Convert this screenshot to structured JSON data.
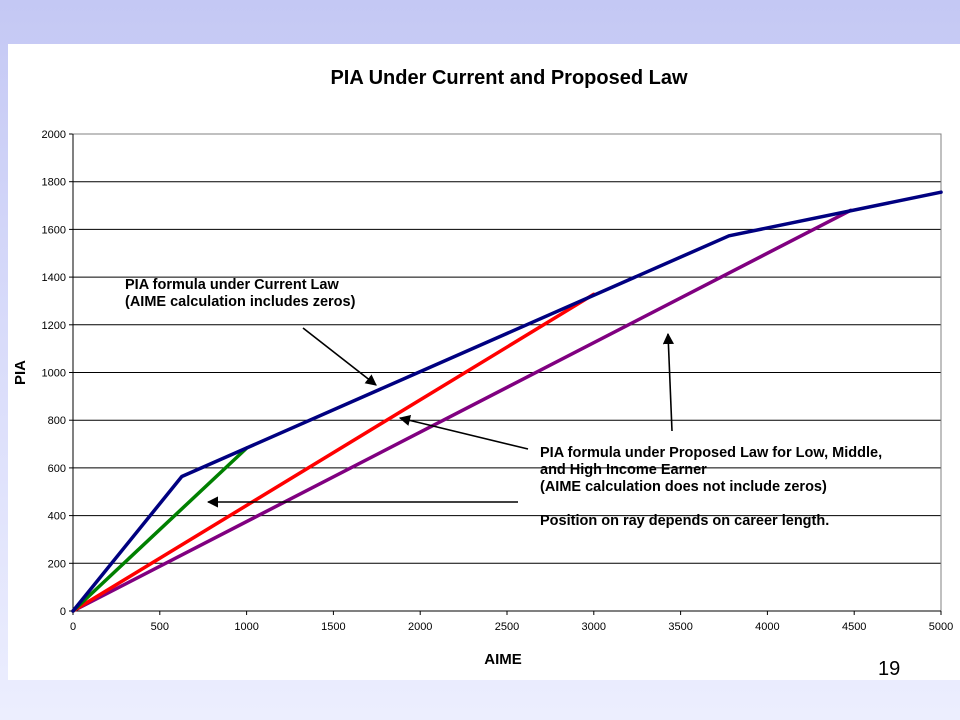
{
  "slide": {
    "page_number": "19"
  },
  "chart_data": {
    "type": "line",
    "title": "PIA Under Current and Proposed Law",
    "xlabel": "AIME",
    "ylabel": "PIA",
    "xlim": [
      0,
      5000
    ],
    "ylim": [
      0,
      2000
    ],
    "x_ticks": [
      0,
      500,
      1000,
      1500,
      2000,
      2500,
      3000,
      3500,
      4000,
      4500,
      5000
    ],
    "y_ticks": [
      0,
      200,
      400,
      600,
      800,
      1000,
      1200,
      1400,
      1600,
      1800,
      2000
    ],
    "grid": "horizontal",
    "legend": "none",
    "series": [
      {
        "color": "#000080",
        "x": [
          0,
          627,
          3779,
          5000
        ],
        "y": [
          0,
          564,
          1573,
          1756
        ]
      },
      {
        "color": "#008000",
        "x": [
          0,
          1000
        ],
        "y": [
          0,
          683
        ]
      },
      {
        "color": "#ff0000",
        "x": [
          0,
          3000
        ],
        "y": [
          0,
          1328
        ]
      },
      {
        "color": "#800080",
        "x": [
          0,
          4480
        ],
        "y": [
          0,
          1680
        ]
      }
    ],
    "annotations": {
      "current_law": [
        "PIA formula under Current Law",
        "(AIME calculation includes zeros)"
      ],
      "proposed_law": [
        "PIA formula under Proposed Law for Low, Middle,",
        "and High Income Earner",
        "(AIME calculation does not include zeros)",
        "",
        "Position on ray depends on career length."
      ]
    }
  }
}
